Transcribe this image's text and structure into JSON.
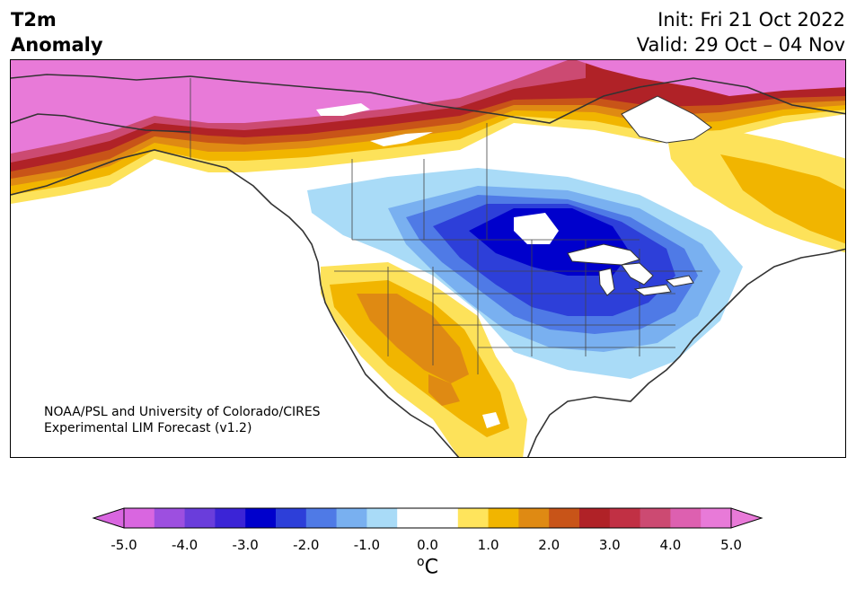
{
  "header": {
    "title_line1": "T2m",
    "title_line2": "Anomaly",
    "init": "Init: Fri 21 Oct 2022",
    "valid": "Valid: 29 Oct – 04 Nov"
  },
  "credit": {
    "line1": "NOAA/PSL and University of Colorado/CIRES",
    "line2": "Experimental LIM Forecast (v1.2)"
  },
  "colorbar": {
    "ticks": [
      "-5.0",
      "-4.0",
      "-3.0",
      "-2.0",
      "-1.0",
      "0.0",
      "1.0",
      "2.0",
      "3.0",
      "4.0",
      "5.0"
    ],
    "unit_sup": "o",
    "unit_main": "C",
    "colors": [
      "#d966e0",
      "#9d4fe0",
      "#6a3ddb",
      "#3b24d6",
      "#0000cc",
      "#2d3fd9",
      "#4f7ae6",
      "#79b0f0",
      "#a9dbf7",
      "#ffffff",
      "#ffffff",
      "#ffe45c",
      "#f1b500",
      "#df8a13",
      "#c85418",
      "#b02227",
      "#c13044",
      "#cc4a72",
      "#dd60b0",
      "#e87ad8"
    ]
  },
  "map": {
    "region": "North America",
    "colors": {
      "land_outline": "#333333",
      "cold_core": "#0000cc",
      "warm_core": "#f1b500",
      "extreme_warm": "#e87ad8"
    }
  }
}
